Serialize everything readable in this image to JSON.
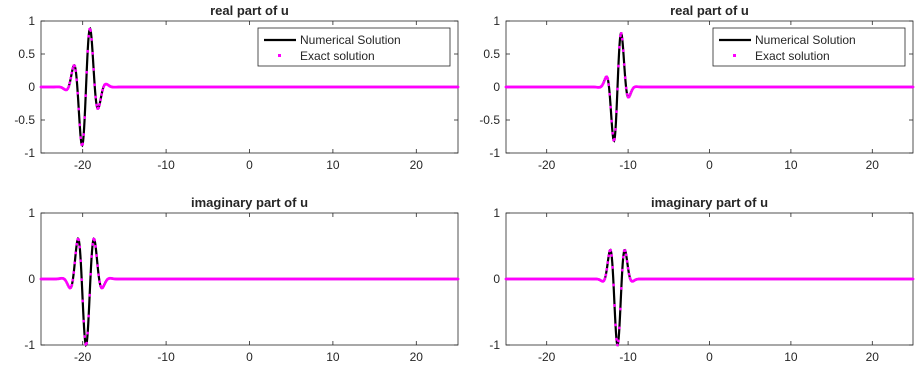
{
  "chart_data": [
    {
      "type": "line",
      "title": "real part of u",
      "xlim": [
        -25,
        25
      ],
      "ylim": [
        -1,
        1
      ],
      "xticks": [
        -20,
        -10,
        0,
        10,
        20
      ],
      "yticks": [
        -1,
        -0.5,
        0,
        0.5,
        1
      ],
      "ytick_labels": [
        "-1",
        "-0.5",
        "0",
        "0.5",
        "1"
      ],
      "legend": {
        "position": "top-right",
        "entries": [
          "Numerical Solution",
          "Exact solution"
        ]
      },
      "wave": {
        "center": -19.6,
        "sigma": 1.0,
        "amplitude": 1.0,
        "k": 3.0,
        "phase": 4.71,
        "envelope": 1.0,
        "part": "real"
      },
      "series": [
        {
          "name": "Numerical Solution",
          "style": "solid",
          "color": "#000000"
        },
        {
          "name": "Exact solution",
          "style": "dots",
          "color": "#ff00ff"
        }
      ]
    },
    {
      "type": "line",
      "title": "real part of u",
      "xlim": [
        -25,
        25
      ],
      "ylim": [
        -1,
        1
      ],
      "xticks": [
        -20,
        -10,
        0,
        10,
        20
      ],
      "yticks": [
        -1,
        -0.5,
        0,
        0.5,
        1
      ],
      "ytick_labels": [
        "-1",
        "-0.5",
        "0",
        "0.5",
        "1"
      ],
      "legend": {
        "position": "top-right",
        "entries": [
          "Numerical Solution",
          "Exact solution"
        ]
      },
      "wave": {
        "center": -11.3,
        "sigma": 0.75,
        "amplitude": 1.0,
        "k": 3.0,
        "phase": 4.71,
        "envelope": 1.0,
        "part": "real"
      },
      "series": [
        {
          "name": "Numerical Solution",
          "style": "solid",
          "color": "#000000"
        },
        {
          "name": "Exact solution",
          "style": "dots",
          "color": "#ff00ff"
        }
      ]
    },
    {
      "type": "line",
      "title": "imaginary part of u",
      "xlim": [
        -25,
        25
      ],
      "ylim": [
        -1,
        1
      ],
      "xticks": [
        -20,
        -10,
        0,
        10,
        20
      ],
      "yticks": [
        -1,
        0,
        1
      ],
      "ytick_labels": [
        "-1",
        "0",
        "1"
      ],
      "wave": {
        "center": -19.6,
        "sigma": 1.0,
        "amplitude": 1.0,
        "k": 3.0,
        "phase": 4.71,
        "envelope": 1.0,
        "part": "imag"
      },
      "series": [
        {
          "name": "Numerical Solution",
          "style": "solid",
          "color": "#000000"
        },
        {
          "name": "Exact solution",
          "style": "dots",
          "color": "#ff00ff"
        }
      ]
    },
    {
      "type": "line",
      "title": "imaginary part of u",
      "xlim": [
        -25,
        25
      ],
      "ylim": [
        -1,
        1
      ],
      "xticks": [
        -20,
        -10,
        0,
        10,
        20
      ],
      "yticks": [
        -1,
        0,
        1
      ],
      "ytick_labels": [
        "-1",
        "0",
        "1"
      ],
      "wave": {
        "center": -11.3,
        "sigma": 0.75,
        "amplitude": 1.0,
        "k": 3.0,
        "phase": 4.71,
        "envelope": 1.0,
        "part": "imag"
      },
      "series": [
        {
          "name": "Numerical Solution",
          "style": "solid",
          "color": "#000000"
        },
        {
          "name": "Exact solution",
          "style": "dots",
          "color": "#ff00ff"
        }
      ]
    }
  ]
}
